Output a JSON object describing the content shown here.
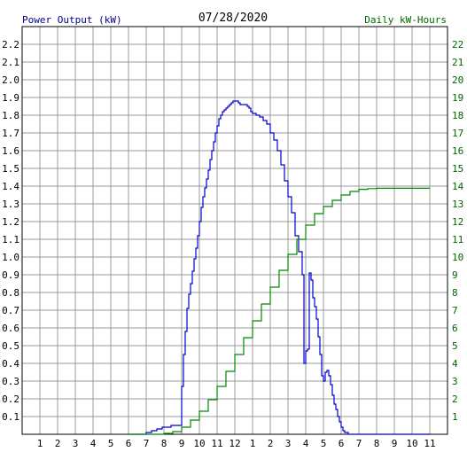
{
  "header": {
    "left_label": "Power Output (kW)",
    "center_label": "07/28/2020",
    "right_label": "Daily kW-Hours"
  },
  "colors": {
    "power_series": "#0000cc",
    "energy_series": "#008800",
    "grid": "#999999",
    "axis_text": "#000000",
    "right_axis_text": "#006600"
  },
  "chart_data": {
    "type": "line",
    "title": "07/28/2020",
    "x_ticks": [
      "1",
      "2",
      "3",
      "4",
      "5",
      "6",
      "7",
      "8",
      "9",
      "10",
      "11",
      "12",
      "1",
      "2",
      "3",
      "4",
      "5",
      "6",
      "7",
      "8",
      "9",
      "10",
      "11"
    ],
    "y_left": {
      "label": "Power Output (kW)",
      "range": [
        0,
        2.3
      ],
      "ticks": [
        "0.1",
        "0.2",
        "0.3",
        "0.4",
        "0.5",
        "0.6",
        "0.7",
        "0.8",
        "0.9",
        "1.0",
        "1.1",
        "1.2",
        "1.3",
        "1.4",
        "1.5",
        "1.6",
        "1.7",
        "1.8",
        "1.9",
        "2.0",
        "2.1",
        "2.2"
      ]
    },
    "y_right": {
      "label": "Daily kW-Hours",
      "range": [
        0,
        23
      ],
      "ticks": [
        "1",
        "2",
        "3",
        "4",
        "5",
        "6",
        "7",
        "8",
        "9",
        "10",
        "11",
        "12",
        "13",
        "14",
        "15",
        "16",
        "17",
        "18",
        "19",
        "20",
        "21",
        "22"
      ]
    },
    "grid": true,
    "series": [
      {
        "name": "Power Output (kW)",
        "axis": "left",
        "x": [
          6.0,
          6.9,
          7.0,
          7.3,
          7.6,
          7.9,
          8.1,
          8.4,
          8.7,
          8.9,
          9.0,
          9.1,
          9.2,
          9.3,
          9.4,
          9.5,
          9.6,
          9.7,
          9.8,
          9.9,
          10.0,
          10.1,
          10.2,
          10.3,
          10.4,
          10.5,
          10.6,
          10.7,
          10.8,
          10.9,
          11.0,
          11.1,
          11.2,
          11.3,
          11.4,
          11.5,
          11.6,
          11.7,
          11.8,
          11.9,
          12.0,
          12.1,
          12.2,
          12.3,
          12.4,
          12.5,
          12.6,
          12.7,
          12.8,
          12.9,
          13.0,
          13.2,
          13.4,
          13.6,
          13.8,
          14.0,
          14.2,
          14.4,
          14.6,
          14.8,
          15.0,
          15.2,
          15.4,
          15.6,
          15.8,
          15.9,
          16.0,
          16.1,
          16.2,
          16.3,
          16.4,
          16.5,
          16.6,
          16.7,
          16.8,
          16.9,
          17.0,
          17.1,
          17.2,
          17.3,
          17.4,
          17.5,
          17.6,
          17.7,
          17.8,
          17.9,
          18.0,
          18.1,
          18.2,
          18.3,
          18.4,
          18.5,
          18.6,
          18.7,
          18.8,
          18.9,
          19.0,
          19.1,
          19.2,
          19.3,
          19.4,
          19.5,
          19.6,
          19.7,
          19.8,
          19.9,
          20.0,
          20.1,
          20.2,
          20.4,
          20.6,
          20.8,
          21.0,
          21.5,
          22.0,
          23.0
        ],
        "values": [
          0.0,
          0.0,
          0.01,
          0.02,
          0.03,
          0.04,
          0.04,
          0.05,
          0.05,
          0.05,
          0.27,
          0.45,
          0.58,
          0.71,
          0.79,
          0.85,
          0.92,
          0.99,
          1.05,
          1.12,
          1.2,
          1.28,
          1.34,
          1.39,
          1.44,
          1.49,
          1.55,
          1.6,
          1.65,
          1.7,
          1.74,
          1.78,
          1.8,
          1.82,
          1.83,
          1.84,
          1.85,
          1.86,
          1.87,
          1.88,
          1.88,
          1.88,
          1.87,
          1.86,
          1.86,
          1.86,
          1.86,
          1.85,
          1.84,
          1.82,
          1.81,
          1.8,
          1.79,
          1.77,
          1.75,
          1.7,
          1.66,
          1.6,
          1.52,
          1.43,
          1.34,
          1.25,
          1.12,
          1.03,
          0.9,
          0.4,
          0.47,
          0.48,
          0.91,
          0.87,
          0.77,
          0.72,
          0.65,
          0.55,
          0.45,
          0.33,
          0.3,
          0.35,
          0.36,
          0.33,
          0.28,
          0.22,
          0.17,
          0.14,
          0.1,
          0.07,
          0.04,
          0.02,
          0.01,
          0.01,
          0.0,
          0.0,
          0.0,
          0.0,
          0.0,
          0.0,
          0.0,
          0.0,
          0.0,
          0.0,
          0.0,
          0.0,
          0.0,
          0.0,
          0.0,
          0.0,
          0.0,
          0.0,
          0.0,
          0.0,
          0.0,
          0.0,
          0.0,
          0.0,
          0.0,
          0.0
        ]
      },
      {
        "name": "Daily kW-Hours",
        "axis": "right",
        "x": [
          6.0,
          8.0,
          8.5,
          9.0,
          9.5,
          10.0,
          10.5,
          11.0,
          11.5,
          12.0,
          12.5,
          13.0,
          13.5,
          14.0,
          14.5,
          15.0,
          15.5,
          16.0,
          16.5,
          17.0,
          17.5,
          18.0,
          18.5,
          19.0,
          19.5,
          20.0,
          21.0,
          22.0,
          23.0
        ],
        "values": [
          0.0,
          0.05,
          0.15,
          0.4,
          0.8,
          1.3,
          1.95,
          2.7,
          3.55,
          4.5,
          5.45,
          6.4,
          7.35,
          8.3,
          9.25,
          10.15,
          11.0,
          11.8,
          12.45,
          12.85,
          13.2,
          13.5,
          13.7,
          13.82,
          13.86,
          13.88,
          13.88,
          13.88,
          13.88
        ]
      }
    ]
  }
}
